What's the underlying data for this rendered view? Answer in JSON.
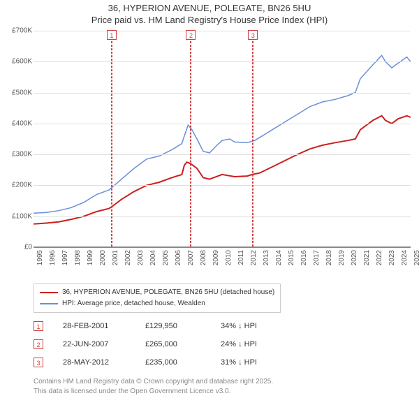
{
  "title": "36, HYPERION AVENUE, POLEGATE, BN26 5HU",
  "subtitle": "Price paid vs. HM Land Registry's House Price Index (HPI)",
  "chart": {
    "type": "line",
    "background_color": "#ffffff",
    "grid_color": "#e0e0e0",
    "axis_color": "#888888",
    "label_fontsize": 10,
    "xlim": [
      1995,
      2025
    ],
    "ylim": [
      0,
      700000
    ],
    "ytick_step": 100000,
    "ylabels": [
      "£0",
      "£100K",
      "£200K",
      "£300K",
      "£400K",
      "£500K",
      "£600K",
      "£700K"
    ],
    "xlabels": [
      "1995",
      "1996",
      "1997",
      "1998",
      "1999",
      "2000",
      "2001",
      "2002",
      "2003",
      "2004",
      "2005",
      "2006",
      "2007",
      "2008",
      "2009",
      "2010",
      "2011",
      "2012",
      "2013",
      "2014",
      "2015",
      "2016",
      "2017",
      "2018",
      "2019",
      "2020",
      "2021",
      "2022",
      "2023",
      "2024",
      "2025"
    ],
    "series": [
      {
        "id": "property",
        "label": "36, HYPERION AVENUE, POLEGATE, BN26 5HU (detached house)",
        "color": "#cc1f1f",
        "line_width": 2,
        "points": [
          [
            1995,
            75000
          ],
          [
            1996,
            78000
          ],
          [
            1997,
            82000
          ],
          [
            1998,
            90000
          ],
          [
            1999,
            100000
          ],
          [
            2000,
            115000
          ],
          [
            2001,
            125000
          ],
          [
            2001.2,
            130000
          ],
          [
            2002,
            155000
          ],
          [
            2003,
            180000
          ],
          [
            2004,
            200000
          ],
          [
            2005,
            210000
          ],
          [
            2006,
            225000
          ],
          [
            2006.8,
            235000
          ],
          [
            2007,
            265000
          ],
          [
            2007.2,
            275000
          ],
          [
            2007.5,
            270000
          ],
          [
            2008,
            255000
          ],
          [
            2008.5,
            225000
          ],
          [
            2009,
            220000
          ],
          [
            2010,
            235000
          ],
          [
            2011,
            228000
          ],
          [
            2012,
            230000
          ],
          [
            2012.4,
            235000
          ],
          [
            2013,
            240000
          ],
          [
            2014,
            260000
          ],
          [
            2015,
            280000
          ],
          [
            2016,
            300000
          ],
          [
            2017,
            318000
          ],
          [
            2018,
            330000
          ],
          [
            2019,
            338000
          ],
          [
            2020,
            345000
          ],
          [
            2020.6,
            350000
          ],
          [
            2021,
            380000
          ],
          [
            2022,
            410000
          ],
          [
            2022.7,
            425000
          ],
          [
            2023,
            410000
          ],
          [
            2023.5,
            400000
          ],
          [
            2024,
            415000
          ],
          [
            2024.7,
            425000
          ],
          [
            2025,
            420000
          ]
        ]
      },
      {
        "id": "hpi",
        "label": "HPI: Average price, detached house, Wealden",
        "color": "#6a8fd8",
        "line_width": 1.5,
        "points": [
          [
            1995,
            110000
          ],
          [
            1996,
            112000
          ],
          [
            1997,
            118000
          ],
          [
            1998,
            128000
          ],
          [
            1999,
            145000
          ],
          [
            2000,
            170000
          ],
          [
            2001,
            185000
          ],
          [
            2002,
            220000
          ],
          [
            2003,
            255000
          ],
          [
            2004,
            285000
          ],
          [
            2005,
            295000
          ],
          [
            2006,
            315000
          ],
          [
            2006.8,
            335000
          ],
          [
            2007,
            360000
          ],
          [
            2007.3,
            395000
          ],
          [
            2007.6,
            380000
          ],
          [
            2008,
            350000
          ],
          [
            2008.5,
            310000
          ],
          [
            2009,
            305000
          ],
          [
            2009.6,
            330000
          ],
          [
            2010,
            345000
          ],
          [
            2010.6,
            350000
          ],
          [
            2011,
            340000
          ],
          [
            2012,
            338000
          ],
          [
            2012.6,
            345000
          ],
          [
            2013,
            355000
          ],
          [
            2014,
            380000
          ],
          [
            2015,
            405000
          ],
          [
            2016,
            430000
          ],
          [
            2017,
            455000
          ],
          [
            2018,
            470000
          ],
          [
            2019,
            478000
          ],
          [
            2020,
            490000
          ],
          [
            2020.6,
            500000
          ],
          [
            2021,
            545000
          ],
          [
            2022,
            590000
          ],
          [
            2022.7,
            620000
          ],
          [
            2023,
            600000
          ],
          [
            2023.5,
            580000
          ],
          [
            2024,
            595000
          ],
          [
            2024.7,
            615000
          ],
          [
            2025,
            600000
          ]
        ]
      }
    ],
    "markers": [
      {
        "n": "1",
        "x": 2001.16
      },
      {
        "n": "2",
        "x": 2007.47
      },
      {
        "n": "3",
        "x": 2012.41
      }
    ]
  },
  "legend": {
    "border_color": "#cccccc",
    "items": [
      {
        "color": "#cc1f1f",
        "label": "36, HYPERION AVENUE, POLEGATE, BN26 5HU (detached house)"
      },
      {
        "color": "#6a8fd8",
        "label": "HPI: Average price, detached house, Wealden"
      }
    ]
  },
  "sales": [
    {
      "n": "1",
      "date": "28-FEB-2001",
      "price": "£129,950",
      "pct": "34% ↓ HPI"
    },
    {
      "n": "2",
      "date": "22-JUN-2007",
      "price": "£265,000",
      "pct": "24% ↓ HPI"
    },
    {
      "n": "3",
      "date": "28-MAY-2012",
      "price": "£235,000",
      "pct": "31% ↓ HPI"
    }
  ],
  "footer": {
    "line1": "Contains HM Land Registry data © Crown copyright and database right 2025.",
    "line2": "This data is licensed under the Open Government Licence v3.0."
  },
  "colors": {
    "marker_border": "#d04040"
  }
}
